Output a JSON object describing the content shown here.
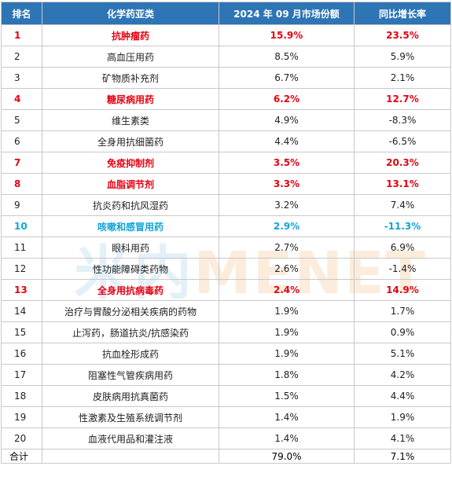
{
  "table": {
    "headers": [
      "排名",
      "化学药亚类",
      "2024 年 09 月市场份额",
      "同比增长率"
    ],
    "rows": [
      {
        "rank": "1",
        "name": "抗肿瘤药",
        "share": "15.9%",
        "growth": "23.5%",
        "highlight": "red"
      },
      {
        "rank": "2",
        "name": "高血压用药",
        "share": "8.5%",
        "growth": "5.9%",
        "highlight": ""
      },
      {
        "rank": "3",
        "name": "矿物质补充剂",
        "share": "6.7%",
        "growth": "2.1%",
        "highlight": ""
      },
      {
        "rank": "4",
        "name": "糖尿病用药",
        "share": "6.2%",
        "growth": "12.7%",
        "highlight": "red"
      },
      {
        "rank": "5",
        "name": "维生素类",
        "share": "4.9%",
        "growth": "-8.3%",
        "highlight": ""
      },
      {
        "rank": "6",
        "name": "全身用抗细菌药",
        "share": "4.4%",
        "growth": "-6.5%",
        "highlight": ""
      },
      {
        "rank": "7",
        "name": "免疫抑制剂",
        "share": "3.5%",
        "growth": "20.3%",
        "highlight": "red"
      },
      {
        "rank": "8",
        "name": "血脂调节剂",
        "share": "3.3%",
        "growth": "13.1%",
        "highlight": "red"
      },
      {
        "rank": "9",
        "name": "抗炎药和抗风湿药",
        "share": "3.2%",
        "growth": "7.4%",
        "highlight": ""
      },
      {
        "rank": "10",
        "name": "咳嗽和感冒用药",
        "share": "2.9%",
        "growth": "-11.3%",
        "highlight": "blue"
      },
      {
        "rank": "11",
        "name": "眼科用药",
        "share": "2.7%",
        "growth": "6.9%",
        "highlight": ""
      },
      {
        "rank": "12",
        "name": "性功能障碍类药物",
        "share": "2.6%",
        "growth": "-1.4%",
        "highlight": ""
      },
      {
        "rank": "13",
        "name": "全身用抗病毒药",
        "share": "2.4%",
        "growth": "14.9%",
        "highlight": "red"
      },
      {
        "rank": "14",
        "name": "治疗与胃酸分泌相关疾病的药物",
        "share": "1.9%",
        "growth": "1.7%",
        "highlight": ""
      },
      {
        "rank": "15",
        "name": "止泻药，肠道抗炎/抗感染药",
        "share": "1.9%",
        "growth": "0.9%",
        "highlight": ""
      },
      {
        "rank": "16",
        "name": "抗血栓形成药",
        "share": "1.9%",
        "growth": "5.1%",
        "highlight": ""
      },
      {
        "rank": "17",
        "name": "阻塞性气管疾病用药",
        "share": "1.8%",
        "growth": "4.2%",
        "highlight": ""
      },
      {
        "rank": "18",
        "name": "皮肤病用抗真菌药",
        "share": "1.5%",
        "growth": "4.4%",
        "highlight": ""
      },
      {
        "rank": "19",
        "name": "性激素及生殖系统调节剂",
        "share": "1.4%",
        "growth": "1.9%",
        "highlight": ""
      },
      {
        "rank": "20",
        "name": "血液代用品和灌注液",
        "share": "1.4%",
        "growth": "4.1%",
        "highlight": ""
      }
    ],
    "total": {
      "label": "合计",
      "name": "",
      "share": "79.0%",
      "growth": "7.1%"
    }
  },
  "watermark": {
    "part_a": "米内",
    "part_b": "MENET"
  },
  "colors": {
    "header_bg": "#2e75b6",
    "highlight_red": "#e60012",
    "highlight_blue": "#0fa5d6"
  }
}
